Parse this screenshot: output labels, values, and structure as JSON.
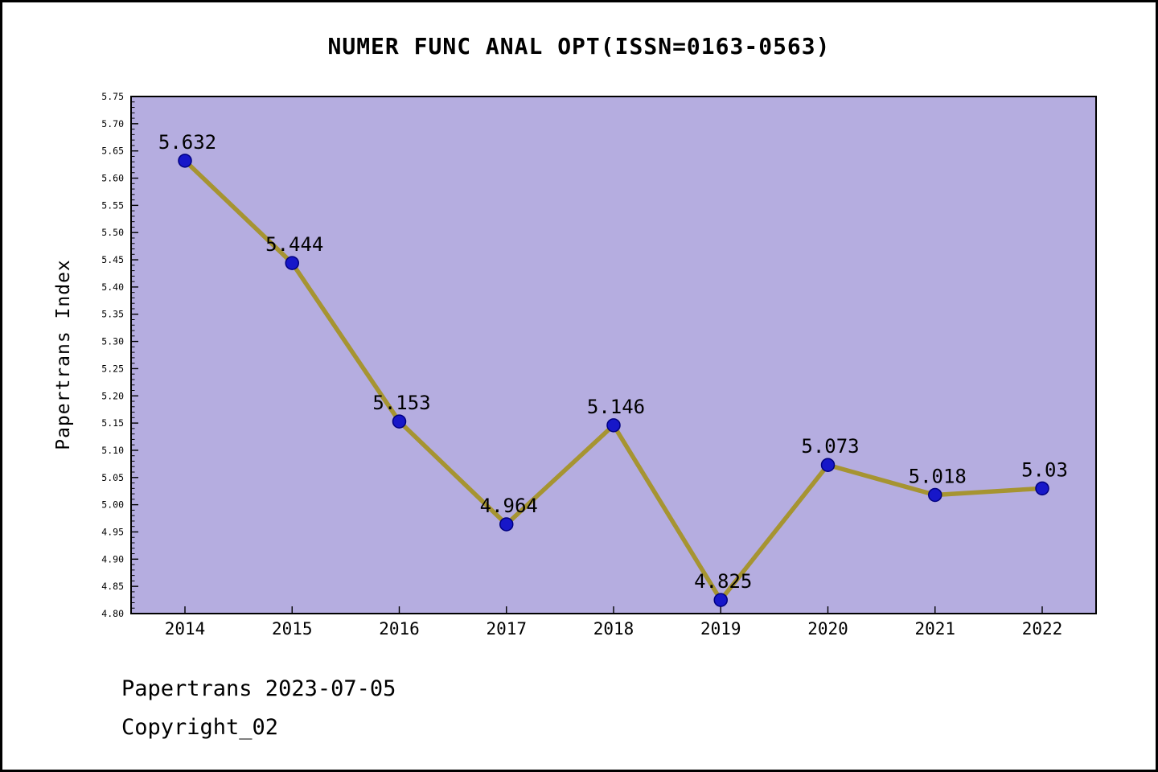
{
  "chart_data": {
    "type": "line",
    "title": "NUMER FUNC ANAL OPT(ISSN=0163-0563)",
    "ylabel": "Papertrans Index",
    "xlabel": "",
    "categories": [
      "2014",
      "2015",
      "2016",
      "2017",
      "2018",
      "2019",
      "2020",
      "2021",
      "2022"
    ],
    "values": [
      5.632,
      5.444,
      5.153,
      4.964,
      5.146,
      4.825,
      5.073,
      5.018,
      5.03
    ],
    "point_labels": [
      "5.632",
      "5.444",
      "5.153",
      "4.964",
      "5.146",
      "4.825",
      "5.073",
      "5.018",
      "5.03"
    ],
    "ylim": [
      4.8,
      5.75
    ],
    "ytick_major_step": 0.05,
    "ytick_minor_step": 0.01,
    "grid": false,
    "legend": "none",
    "colors": {
      "plot_bg": "#b5ade0",
      "line": "#a69431",
      "marker": "#1717c9",
      "marker_edge": "#000080",
      "axis": "#000000",
      "text": "#000000"
    }
  },
  "footer": {
    "date_line": "Papertrans 2023-07-05",
    "copyright_line": "Copyright_02"
  }
}
